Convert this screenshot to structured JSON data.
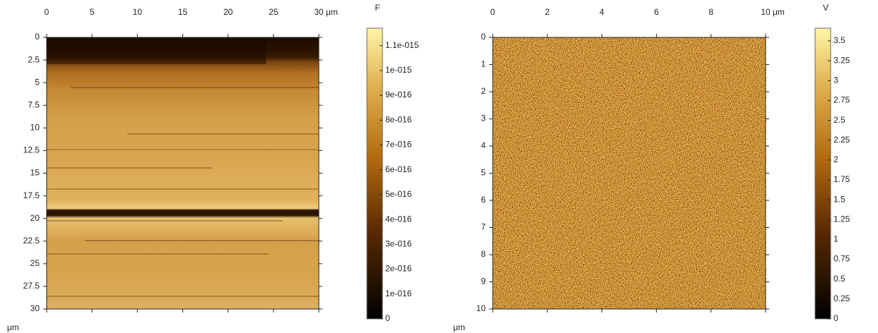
{
  "chart_data": [
    {
      "type": "image",
      "x_unit": "μm",
      "y_unit": "μm",
      "xlim": [
        0,
        30
      ],
      "ylim": [
        0,
        30
      ],
      "xticks": [
        0,
        5,
        10,
        15,
        20,
        25,
        30
      ],
      "yticks": [
        0,
        2.5,
        5,
        7.5,
        10,
        12.5,
        15,
        17.5,
        20,
        22.5,
        25,
        27.5,
        30
      ],
      "colorbar": {
        "label": "F",
        "lim": [
          0,
          1.17e-15
        ],
        "ticks": [
          {
            "value": 1.1e-15,
            "label": "1.1e-015"
          },
          {
            "value": 1e-15,
            "label": "1e-015"
          },
          {
            "value": 9e-16,
            "label": "9e-016"
          },
          {
            "value": 8e-16,
            "label": "8e-016"
          },
          {
            "value": 7e-16,
            "label": "7e-016"
          },
          {
            "value": 6e-16,
            "label": "6e-016"
          },
          {
            "value": 5e-16,
            "label": "5e-016"
          },
          {
            "value": 4e-16,
            "label": "4e-016"
          },
          {
            "value": 3e-16,
            "label": "3e-016"
          },
          {
            "value": 2e-16,
            "label": "2e-016"
          },
          {
            "value": 1e-16,
            "label": "1e-016"
          },
          0
        ]
      }
    },
    {
      "type": "image",
      "x_unit": "μm",
      "y_unit": "μm",
      "xlim": [
        0,
        10
      ],
      "ylim": [
        0,
        10
      ],
      "xticks": [
        0,
        2,
        4,
        6,
        8,
        10
      ],
      "yticks": [
        0,
        1,
        2,
        3,
        4,
        5,
        6,
        7,
        8,
        9,
        10
      ],
      "colorbar": {
        "label": "V",
        "lim": [
          0,
          3.66
        ],
        "ticks": [
          3.5,
          3.25,
          3,
          2.75,
          2.5,
          2.25,
          2,
          1.75,
          1.5,
          1.25,
          1,
          0.75,
          0.5,
          0.25,
          0
        ]
      }
    }
  ]
}
